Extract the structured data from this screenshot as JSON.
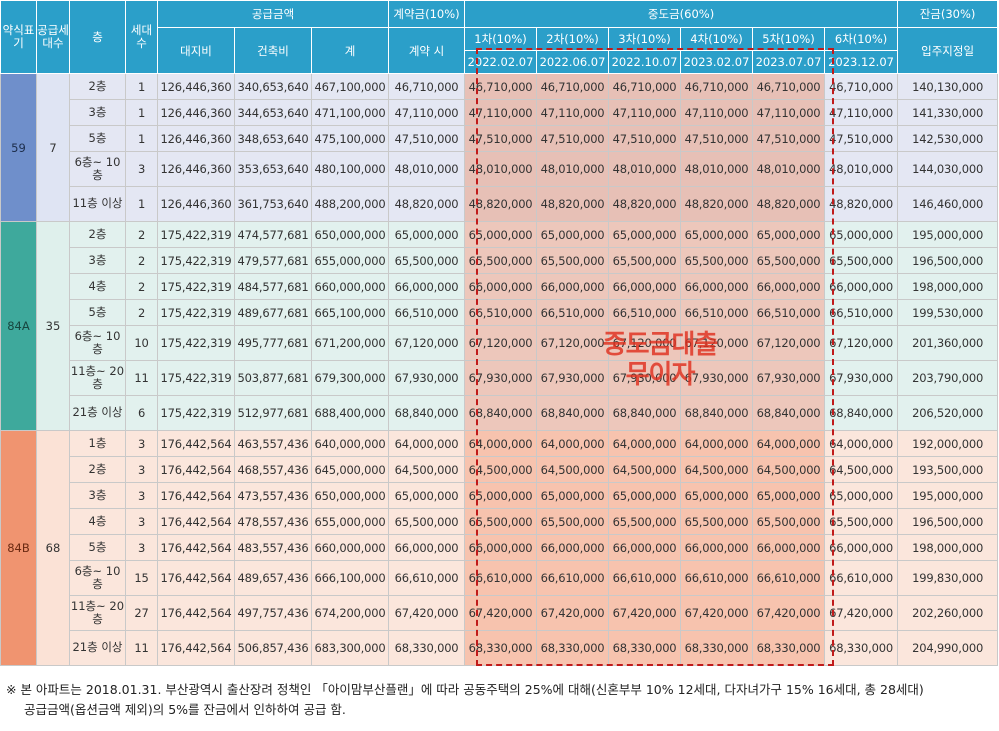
{
  "headers": {
    "type": "약식표기",
    "supply_units": "공급세대수",
    "floor": "층",
    "units": "세대수",
    "supply_amount": "공급금액",
    "land": "대지비",
    "building": "건축비",
    "total": "계",
    "deposit": "계약금(10%)",
    "deposit_when": "계약 시",
    "middle": "중도금(60%)",
    "balance": "잔금(30%)",
    "balance_when": "입주지정일",
    "installments": [
      {
        "label": "1차(10%)",
        "date": "2022.02.07"
      },
      {
        "label": "2차(10%)",
        "date": "2022.06.07"
      },
      {
        "label": "3차(10%)",
        "date": "2022.10.07"
      },
      {
        "label": "4차(10%)",
        "date": "2023.02.07"
      },
      {
        "label": "5차(10%)",
        "date": "2023.07.07"
      },
      {
        "label": "6차(10%)",
        "date": "2023.12.07"
      }
    ]
  },
  "groups": [
    {
      "type": "59",
      "supply": "7",
      "theme": "g59",
      "rows": [
        {
          "floor": "2층",
          "units": "1",
          "land": "126,446,360",
          "building": "340,653,640",
          "total": "467,100,000",
          "deposit": "46,710,000",
          "mid": "46,710,000",
          "balance": "140,130,000"
        },
        {
          "floor": "3층",
          "units": "1",
          "land": "126,446,360",
          "building": "344,653,640",
          "total": "471,100,000",
          "deposit": "47,110,000",
          "mid": "47,110,000",
          "balance": "141,330,000"
        },
        {
          "floor": "5층",
          "units": "1",
          "land": "126,446,360",
          "building": "348,653,640",
          "total": "475,100,000",
          "deposit": "47,510,000",
          "mid": "47,510,000",
          "balance": "142,530,000"
        },
        {
          "floor": "6층~\n10층",
          "units": "3",
          "land": "126,446,360",
          "building": "353,653,640",
          "total": "480,100,000",
          "deposit": "48,010,000",
          "mid": "48,010,000",
          "balance": "144,030,000"
        },
        {
          "floor": "11층\n이상",
          "units": "1",
          "land": "126,446,360",
          "building": "361,753,640",
          "total": "488,200,000",
          "deposit": "48,820,000",
          "mid": "48,820,000",
          "balance": "146,460,000"
        }
      ]
    },
    {
      "type": "84A",
      "supply": "35",
      "theme": "g84a",
      "rows": [
        {
          "floor": "2층",
          "units": "2",
          "land": "175,422,319",
          "building": "474,577,681",
          "total": "650,000,000",
          "deposit": "65,000,000",
          "mid": "65,000,000",
          "balance": "195,000,000"
        },
        {
          "floor": "3층",
          "units": "2",
          "land": "175,422,319",
          "building": "479,577,681",
          "total": "655,000,000",
          "deposit": "65,500,000",
          "mid": "65,500,000",
          "balance": "196,500,000"
        },
        {
          "floor": "4층",
          "units": "2",
          "land": "175,422,319",
          "building": "484,577,681",
          "total": "660,000,000",
          "deposit": "66,000,000",
          "mid": "66,000,000",
          "balance": "198,000,000"
        },
        {
          "floor": "5층",
          "units": "2",
          "land": "175,422,319",
          "building": "489,677,681",
          "total": "665,100,000",
          "deposit": "66,510,000",
          "mid": "66,510,000",
          "balance": "199,530,000"
        },
        {
          "floor": "6층~\n10층",
          "units": "10",
          "land": "175,422,319",
          "building": "495,777,681",
          "total": "671,200,000",
          "deposit": "67,120,000",
          "mid": "67,120,000",
          "balance": "201,360,000"
        },
        {
          "floor": "11층~\n20층",
          "units": "11",
          "land": "175,422,319",
          "building": "503,877,681",
          "total": "679,300,000",
          "deposit": "67,930,000",
          "mid": "67,930,000",
          "balance": "203,790,000"
        },
        {
          "floor": "21층\n이상",
          "units": "6",
          "land": "175,422,319",
          "building": "512,977,681",
          "total": "688,400,000",
          "deposit": "68,840,000",
          "mid": "68,840,000",
          "balance": "206,520,000"
        }
      ]
    },
    {
      "type": "84B",
      "supply": "68",
      "theme": "g84b",
      "rows": [
        {
          "floor": "1층",
          "units": "3",
          "land": "176,442,564",
          "building": "463,557,436",
          "total": "640,000,000",
          "deposit": "64,000,000",
          "mid": "64,000,000",
          "balance": "192,000,000"
        },
        {
          "floor": "2층",
          "units": "3",
          "land": "176,442,564",
          "building": "468,557,436",
          "total": "645,000,000",
          "deposit": "64,500,000",
          "mid": "64,500,000",
          "balance": "193,500,000"
        },
        {
          "floor": "3층",
          "units": "3",
          "land": "176,442,564",
          "building": "473,557,436",
          "total": "650,000,000",
          "deposit": "65,000,000",
          "mid": "65,000,000",
          "balance": "195,000,000"
        },
        {
          "floor": "4층",
          "units": "3",
          "land": "176,442,564",
          "building": "478,557,436",
          "total": "655,000,000",
          "deposit": "65,500,000",
          "mid": "65,500,000",
          "balance": "196,500,000"
        },
        {
          "floor": "5층",
          "units": "3",
          "land": "176,442,564",
          "building": "483,557,436",
          "total": "660,000,000",
          "deposit": "66,000,000",
          "mid": "66,000,000",
          "balance": "198,000,000"
        },
        {
          "floor": "6층~\n10층",
          "units": "15",
          "land": "176,442,564",
          "building": "489,657,436",
          "total": "666,100,000",
          "deposit": "66,610,000",
          "mid": "66,610,000",
          "balance": "199,830,000"
        },
        {
          "floor": "11층~\n20층",
          "units": "27",
          "land": "176,442,564",
          "building": "497,757,436",
          "total": "674,200,000",
          "deposit": "67,420,000",
          "mid": "67,420,000",
          "balance": "202,260,000"
        },
        {
          "floor": "21층\n이상",
          "units": "11",
          "land": "176,442,564",
          "building": "506,857,436",
          "total": "683,300,000",
          "deposit": "68,330,000",
          "mid": "68,330,000",
          "balance": "204,990,000"
        }
      ]
    }
  ],
  "stamp": {
    "line1": "중도금대출",
    "line2": "무이자"
  },
  "notes": {
    "line1": "※ 본 아파트는 2018.01.31. 부산광역시 출산장려 정책인 「아이맘부산플랜」에 따라 공동주택의 25%에 대해(신혼부부 10% 12세대, 다자녀가구 15% 16세대, 총 28세대)",
    "line2": "공급금액(옵션금액 제외)의 5%를 잔금에서 인하하여 공급 함."
  }
}
